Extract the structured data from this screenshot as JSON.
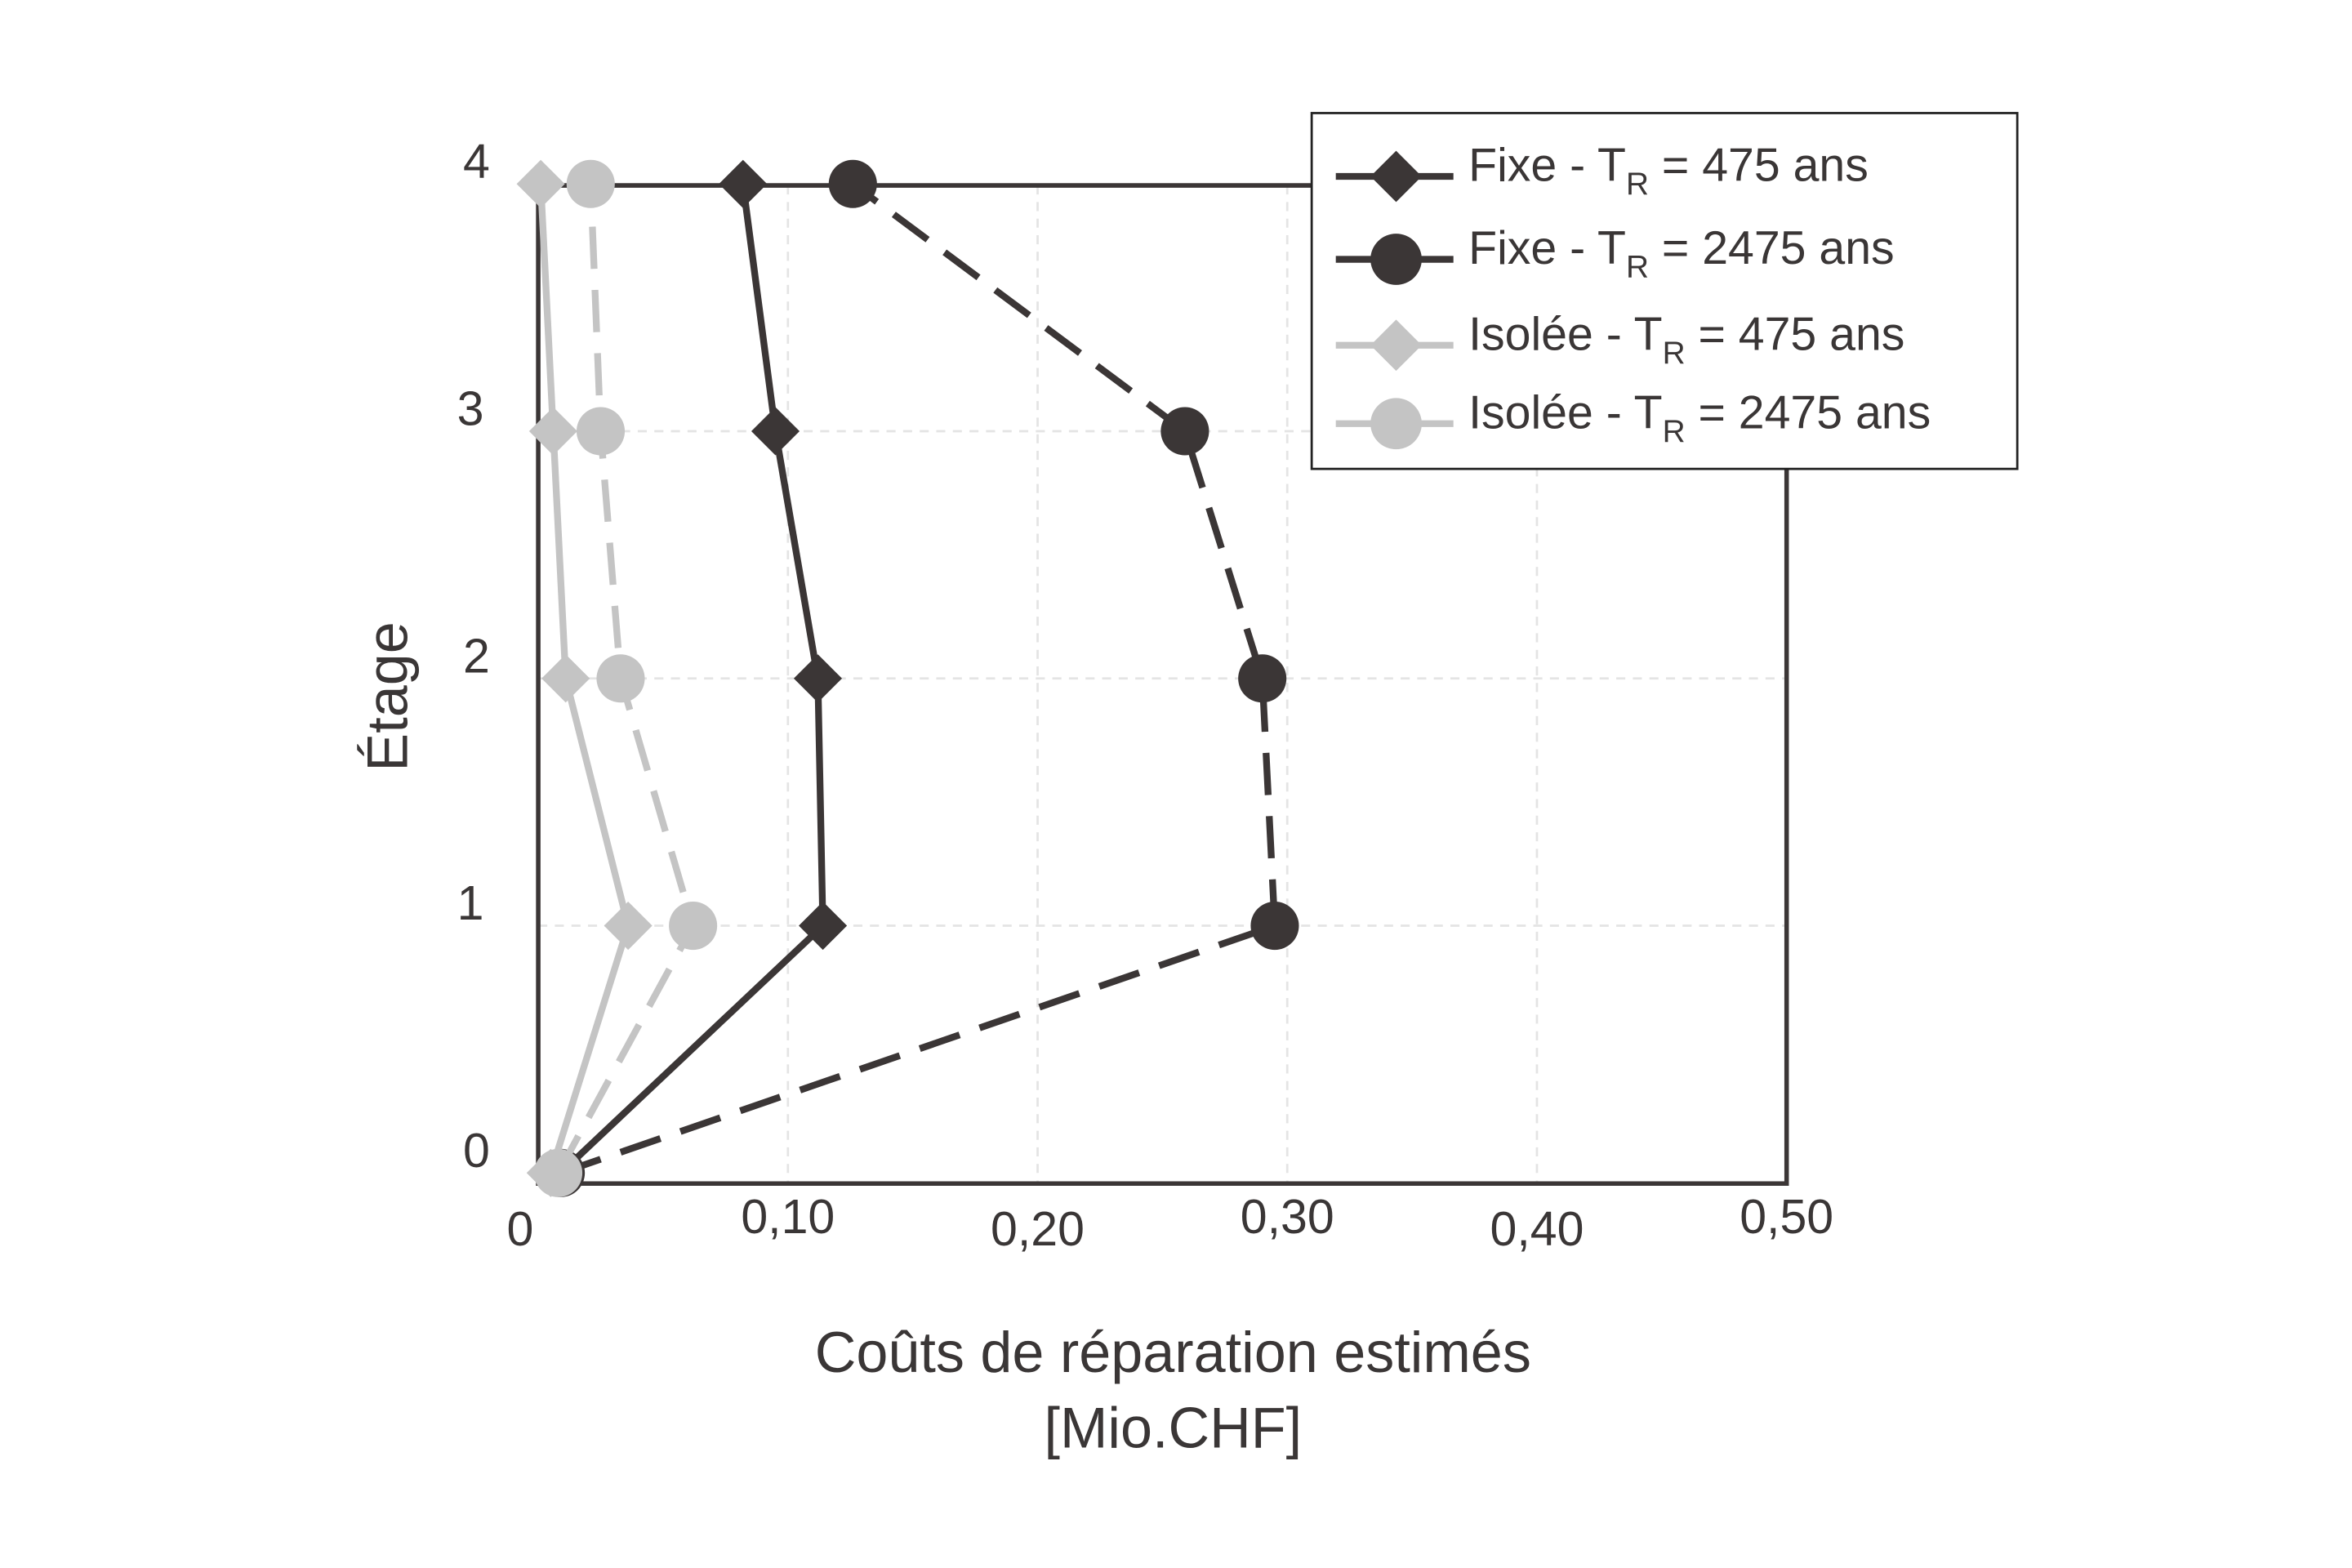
{
  "chart_data": {
    "type": "line",
    "xlabel": "Coûts de réparation estimés",
    "xlabel_unit": "[Mio.CHF]",
    "ylabel": "Étage",
    "xlim": [
      0,
      0.5
    ],
    "ylim": [
      0,
      4
    ],
    "x_ticks": [
      "0",
      "0,10",
      "0,20",
      "0,30",
      "0,40",
      "0,50"
    ],
    "x_tick_values": [
      0,
      0.1,
      0.2,
      0.3,
      0.4,
      0.5
    ],
    "y_ticks": [
      "0",
      "1",
      "2",
      "3",
      "4"
    ],
    "y_tick_values": [
      0,
      1,
      2,
      3,
      4
    ],
    "grid": true,
    "legend_position": "top-right",
    "series": [
      {
        "name": "Fixe - TR = 475 ans",
        "label_prefix": "Fixe - T",
        "label_sub": "R",
        "label_suffix": " = 475 ans",
        "color": "#3b3636",
        "marker": "diamond",
        "dashed": false,
        "x": [
          0.009,
          0.114,
          0.112,
          0.095,
          0.082
        ],
        "y": [
          0,
          1,
          2,
          3,
          4
        ]
      },
      {
        "name": "Fixe - TR = 2475 ans",
        "label_prefix": "Fixe - T",
        "label_sub": "R",
        "label_suffix": " = 2475 ans",
        "color": "#3b3636",
        "marker": "circle",
        "dashed": true,
        "x": [
          0.009,
          0.295,
          0.29,
          0.259,
          0.126
        ],
        "y": [
          0,
          1,
          2,
          3,
          4
        ]
      },
      {
        "name": "Isolée - TR = 475 ans",
        "label_prefix": "Isolée - T",
        "label_sub": "R",
        "label_suffix": " = 475 ans",
        "color": "#c4c4c4",
        "marker": "diamond",
        "dashed": false,
        "x": [
          0.005,
          0.036,
          0.011,
          0.006,
          0.001
        ],
        "y": [
          0,
          1,
          2,
          3,
          4
        ]
      },
      {
        "name": "Isolée - TR = 2475 ans",
        "label_prefix": "Isolée - T",
        "label_sub": "R",
        "label_suffix": " = 2475 ans",
        "color": "#c4c4c4",
        "marker": "circle",
        "dashed": true,
        "x": [
          0.008,
          0.062,
          0.033,
          0.025,
          0.021
        ],
        "y": [
          0,
          1,
          2,
          3,
          4
        ]
      }
    ]
  }
}
